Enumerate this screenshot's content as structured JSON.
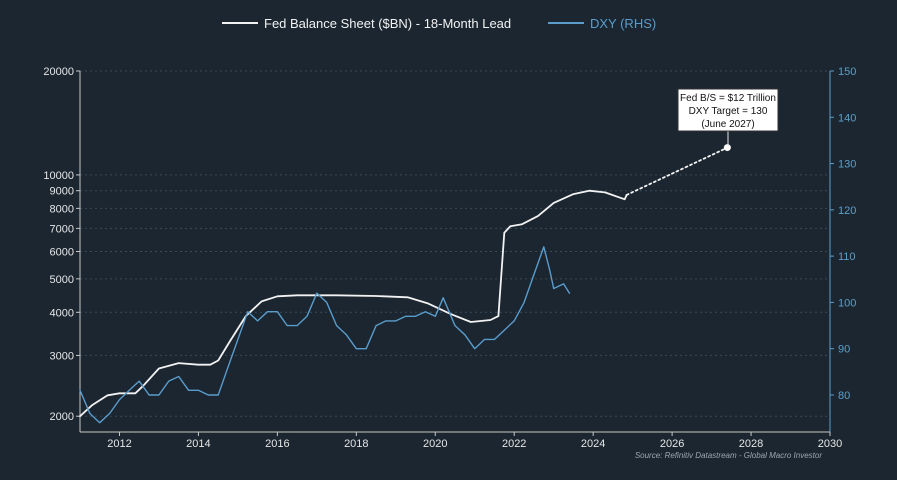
{
  "colors": {
    "background": "#1b2630",
    "fed": "#f2f2f2",
    "dxy": "#5a9ccc",
    "grid": "#3a4a58",
    "axis": "#c8c8c8"
  },
  "chart_data": {
    "type": "line",
    "x_range": [
      2011,
      2030
    ],
    "x_ticks": [
      2012,
      2014,
      2016,
      2018,
      2020,
      2022,
      2024,
      2026,
      2028,
      2030
    ],
    "y_left": {
      "scale": "log",
      "range": [
        1800,
        20000
      ],
      "ticks": [
        2000,
        3000,
        4000,
        5000,
        6000,
        7000,
        8000,
        9000,
        10000,
        20000
      ]
    },
    "y_right": {
      "scale": "linear",
      "range": [
        72,
        150
      ],
      "ticks": [
        80,
        90,
        100,
        110,
        120,
        130,
        140,
        150
      ]
    },
    "series": [
      {
        "name": "Fed Balance Sheet ($BN) - 18-Month Lead",
        "axis": "left",
        "style": "solid",
        "points": [
          [
            2011.0,
            2000
          ],
          [
            2011.3,
            2150
          ],
          [
            2011.7,
            2300
          ],
          [
            2012.0,
            2330
          ],
          [
            2012.4,
            2330
          ],
          [
            2012.6,
            2450
          ],
          [
            2013.0,
            2750
          ],
          [
            2013.5,
            2850
          ],
          [
            2014.0,
            2820
          ],
          [
            2014.3,
            2820
          ],
          [
            2014.5,
            2900
          ],
          [
            2014.8,
            3300
          ],
          [
            2015.2,
            3900
          ],
          [
            2015.6,
            4300
          ],
          [
            2016.0,
            4450
          ],
          [
            2016.5,
            4480
          ],
          [
            2017.5,
            4480
          ],
          [
            2018.5,
            4460
          ],
          [
            2019.3,
            4420
          ],
          [
            2019.8,
            4250
          ],
          [
            2020.4,
            3950
          ],
          [
            2020.9,
            3750
          ],
          [
            2021.4,
            3800
          ],
          [
            2021.6,
            3900
          ],
          [
            2021.75,
            6800
          ],
          [
            2021.9,
            7100
          ],
          [
            2022.2,
            7200
          ],
          [
            2022.6,
            7600
          ],
          [
            2023.0,
            8300
          ],
          [
            2023.5,
            8800
          ],
          [
            2023.9,
            9000
          ],
          [
            2024.3,
            8900
          ],
          [
            2024.8,
            8500
          ],
          [
            2024.85,
            8750
          ]
        ]
      },
      {
        "name": "Fed Balance Sheet ($BN) - 18-Month Lead",
        "axis": "left",
        "style": "dotted",
        "points": [
          [
            2024.85,
            8750
          ],
          [
            2027.4,
            12000
          ]
        ]
      },
      {
        "name": "DXY (RHS)",
        "axis": "right",
        "style": "solid",
        "points": [
          [
            2011.0,
            81
          ],
          [
            2011.25,
            76
          ],
          [
            2011.5,
            74
          ],
          [
            2011.75,
            76
          ],
          [
            2012.0,
            79
          ],
          [
            2012.25,
            81
          ],
          [
            2012.5,
            83
          ],
          [
            2012.75,
            80
          ],
          [
            2013.0,
            80
          ],
          [
            2013.25,
            83
          ],
          [
            2013.5,
            84
          ],
          [
            2013.75,
            81
          ],
          [
            2014.0,
            81
          ],
          [
            2014.25,
            80
          ],
          [
            2014.5,
            80
          ],
          [
            2014.75,
            86
          ],
          [
            2015.0,
            92
          ],
          [
            2015.25,
            98
          ],
          [
            2015.5,
            96
          ],
          [
            2015.75,
            98
          ],
          [
            2016.0,
            98
          ],
          [
            2016.25,
            95
          ],
          [
            2016.5,
            95
          ],
          [
            2016.75,
            97
          ],
          [
            2017.0,
            102
          ],
          [
            2017.25,
            100
          ],
          [
            2017.5,
            95
          ],
          [
            2017.75,
            93
          ],
          [
            2018.0,
            90
          ],
          [
            2018.25,
            90
          ],
          [
            2018.5,
            95
          ],
          [
            2018.75,
            96
          ],
          [
            2019.0,
            96
          ],
          [
            2019.25,
            97
          ],
          [
            2019.5,
            97
          ],
          [
            2019.75,
            98
          ],
          [
            2020.0,
            97
          ],
          [
            2020.2,
            101
          ],
          [
            2020.5,
            95
          ],
          [
            2020.75,
            93
          ],
          [
            2021.0,
            90
          ],
          [
            2021.25,
            92
          ],
          [
            2021.5,
            92
          ],
          [
            2021.75,
            94
          ],
          [
            2022.0,
            96
          ],
          [
            2022.25,
            100
          ],
          [
            2022.5,
            106
          ],
          [
            2022.75,
            112
          ],
          [
            2022.9,
            107
          ],
          [
            2023.0,
            103
          ],
          [
            2023.25,
            104
          ],
          [
            2023.4,
            102
          ]
        ]
      }
    ],
    "annotations": [
      "Fed B/S = $12 Trillion",
      "DXY Target = 130",
      "(June 2027)"
    ]
  },
  "legend": {
    "items": [
      {
        "label": "Fed Balance Sheet ($BN) - 18-Month Lead"
      },
      {
        "label": "DXY (RHS)"
      }
    ]
  },
  "source": "Source: Refinitiv Datastream - Global Macro Investor"
}
